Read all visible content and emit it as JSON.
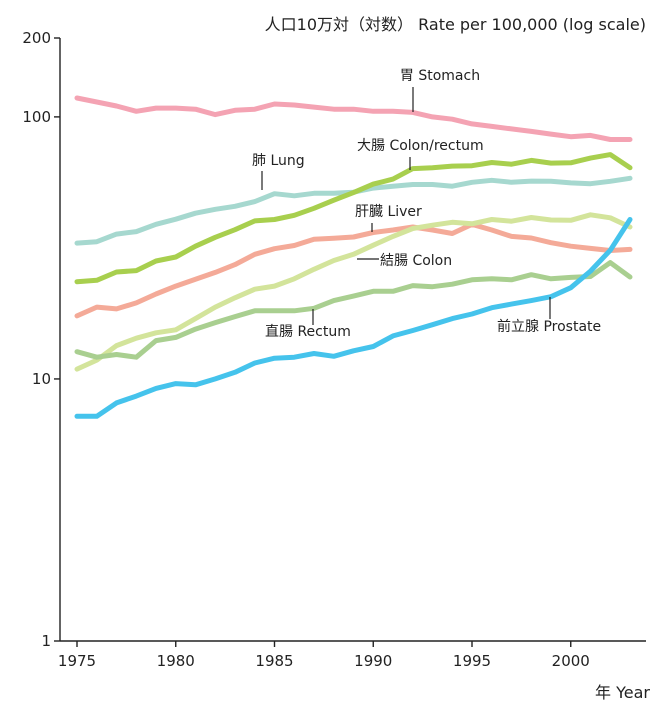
{
  "chart_data": {
    "type": "line",
    "title": "",
    "ylabel": "人口10万対（対数） Rate per 100,000 (log scale)",
    "xlabel": "年 Year",
    "yscale": "log",
    "ylim": [
      1,
      200
    ],
    "xlim": [
      1975,
      2003
    ],
    "y_ticks": [
      1,
      10,
      100,
      200
    ],
    "y_tick_labels": [
      "1",
      "10",
      "100",
      "200"
    ],
    "x_ticks": [
      1975,
      1980,
      1985,
      1990,
      1995,
      2000
    ],
    "x_tick_labels": [
      "1975",
      "1980",
      "1985",
      "1990",
      "1995",
      "2000"
    ],
    "grid": false,
    "legend": "inline labels",
    "x": [
      1975,
      1976,
      1977,
      1978,
      1979,
      1980,
      1981,
      1982,
      1983,
      1984,
      1985,
      1986,
      1987,
      1988,
      1989,
      1990,
      1991,
      1992,
      1993,
      1994,
      1995,
      1996,
      1997,
      1998,
      1999,
      2000,
      2001,
      2002,
      2003
    ],
    "series": [
      {
        "name": "胃 Stomach",
        "color": "#f4a3b3",
        "values": [
          118,
          114,
          110,
          105,
          108,
          108,
          107,
          102,
          106,
          107,
          112,
          111,
          109,
          107,
          107,
          105,
          105,
          104,
          100,
          98,
          94,
          92,
          90,
          88,
          86,
          84,
          85,
          82,
          82
        ]
      },
      {
        "name": "大腸 Colon/rectum",
        "color": "#a8cf4e",
        "values": [
          23.5,
          23.8,
          25.6,
          25.9,
          28.2,
          29.2,
          32.1,
          34.7,
          37.1,
          40.1,
          40.6,
          42.1,
          44.8,
          48.1,
          51.4,
          55.4,
          57.9,
          63.5,
          64.0,
          64.9,
          65.1,
          67.0,
          66.0,
          68.2,
          66.6,
          66.8,
          69.6,
          71.8,
          64.0
        ]
      },
      {
        "name": "肺 Lung",
        "color": "#a6d8cf",
        "values": [
          33.0,
          33.4,
          35.7,
          36.5,
          38.9,
          40.7,
          42.9,
          44.4,
          45.6,
          47.5,
          50.9,
          50.0,
          51.1,
          51.1,
          51.6,
          53.5,
          54.4,
          55.2,
          55.2,
          54.4,
          56.3,
          57.3,
          56.3,
          56.9,
          56.8,
          56.0,
          55.6,
          56.8,
          58.3
        ]
      },
      {
        "name": "肝臓 Liver",
        "color": "#f4aa98",
        "values": [
          17.4,
          18.8,
          18.5,
          19.5,
          21.1,
          22.6,
          24.0,
          25.5,
          27.3,
          29.9,
          31.4,
          32.3,
          34.1,
          34.4,
          34.8,
          36.2,
          37.0,
          38.0,
          37.0,
          35.9,
          38.9,
          37.0,
          35.0,
          34.5,
          33.1,
          32.1,
          31.5,
          30.9,
          31.2
        ]
      },
      {
        "name": "結腸 Colon",
        "color": "#d3e49b",
        "values": [
          10.9,
          11.8,
          13.4,
          14.3,
          15.0,
          15.4,
          17.0,
          18.8,
          20.4,
          22.0,
          22.6,
          24.1,
          26.2,
          28.3,
          29.9,
          32.4,
          35.0,
          37.5,
          38.6,
          39.6,
          39.1,
          40.6,
          40.0,
          41.3,
          40.4,
          40.3,
          42.3,
          41.2,
          38.0
        ]
      },
      {
        "name": "直腸 Rectum",
        "color": "#a9cf90",
        "values": [
          12.7,
          12.1,
          12.4,
          12.1,
          14.0,
          14.4,
          15.5,
          16.4,
          17.3,
          18.2,
          18.2,
          18.2,
          18.6,
          19.9,
          20.7,
          21.6,
          21.6,
          22.7,
          22.5,
          23.0,
          23.9,
          24.1,
          23.9,
          25.0,
          24.1,
          24.4,
          24.6,
          27.8,
          24.5
        ]
      },
      {
        "name": "前立腺 Prostate",
        "color": "#45c3ec",
        "values": [
          7.2,
          7.2,
          8.1,
          8.6,
          9.2,
          9.6,
          9.5,
          10.0,
          10.6,
          11.5,
          12.0,
          12.1,
          12.5,
          12.2,
          12.8,
          13.3,
          14.6,
          15.3,
          16.1,
          17.0,
          17.7,
          18.7,
          19.3,
          19.9,
          20.6,
          22.3,
          25.8,
          31.0,
          40.6
        ]
      }
    ],
    "labels": [
      {
        "text": "胃 Stomach"
      },
      {
        "text": "肺 Lung"
      },
      {
        "text": "大腸 Colon/rectum"
      },
      {
        "text": "肝臓 Liver"
      },
      {
        "text": "結腸 Colon"
      },
      {
        "text": "直腸 Rectum"
      },
      {
        "text": "前立腺 Prostate"
      }
    ]
  }
}
